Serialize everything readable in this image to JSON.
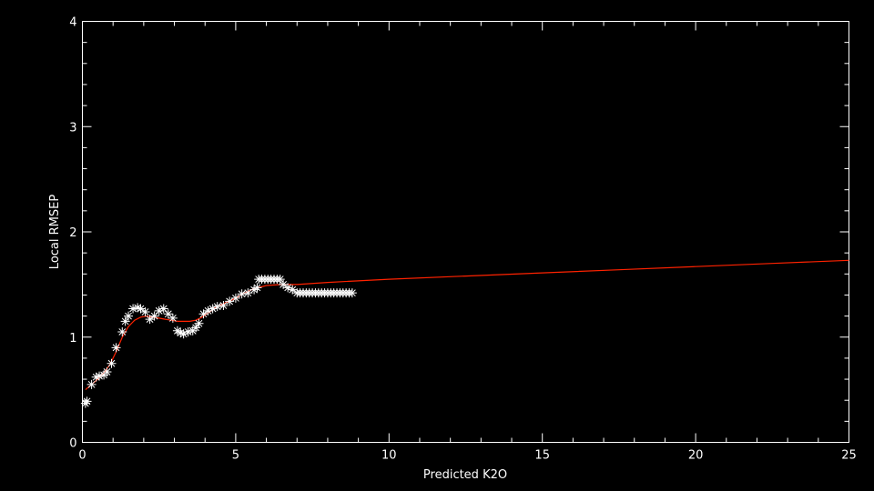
{
  "chart_data": {
    "type": "scatter",
    "title": "",
    "xlabel": "Predicted K2O",
    "ylabel": "Local RMSEP",
    "xlim": [
      0,
      25
    ],
    "ylim": [
      0,
      4
    ],
    "x_ticks": [
      "0",
      "5",
      "10",
      "15",
      "20",
      "25"
    ],
    "y_ticks": [
      "0",
      "1",
      "2",
      "3",
      "4"
    ],
    "grid": false,
    "colors": {
      "background": "#000000",
      "axes": "#ffffff",
      "points": "#ffffff",
      "fit": "#ff2200"
    },
    "series": [
      {
        "marker": "asterisk",
        "x": [
          0.1,
          0.15,
          0.3,
          0.45,
          0.55,
          0.7,
          0.8,
          0.95,
          1.1,
          1.3,
          1.4,
          1.5,
          1.65,
          1.8,
          1.9,
          2.05,
          2.2,
          2.35,
          2.5,
          2.65,
          2.8,
          2.95,
          3.1,
          3.2,
          3.3,
          3.45,
          3.6,
          3.7,
          3.8,
          3.95,
          4.1,
          4.25,
          4.4,
          4.6,
          4.8,
          5.0,
          5.2,
          5.4,
          5.6,
          5.7,
          5.75,
          5.85,
          5.95,
          6.05,
          6.15,
          6.25,
          6.35,
          6.45,
          6.55,
          6.7,
          6.85,
          7.0,
          7.1,
          7.2,
          7.3,
          7.4,
          7.5,
          7.6,
          7.7,
          7.8,
          7.9,
          8.0,
          8.1,
          8.2,
          8.3,
          8.4,
          8.5,
          8.6,
          8.7,
          8.8
        ],
        "y": [
          0.37,
          0.39,
          0.55,
          0.62,
          0.63,
          0.64,
          0.67,
          0.75,
          0.9,
          1.05,
          1.15,
          1.2,
          1.27,
          1.28,
          1.27,
          1.24,
          1.17,
          1.2,
          1.25,
          1.27,
          1.22,
          1.18,
          1.06,
          1.04,
          1.03,
          1.05,
          1.06,
          1.09,
          1.13,
          1.22,
          1.25,
          1.27,
          1.29,
          1.3,
          1.34,
          1.37,
          1.41,
          1.42,
          1.45,
          1.47,
          1.55,
          1.55,
          1.55,
          1.55,
          1.55,
          1.55,
          1.55,
          1.55,
          1.5,
          1.47,
          1.45,
          1.42,
          1.42,
          1.42,
          1.42,
          1.42,
          1.42,
          1.42,
          1.42,
          1.42,
          1.42,
          1.42,
          1.42,
          1.42,
          1.42,
          1.42,
          1.42,
          1.42,
          1.42,
          1.42
        ]
      },
      {
        "marker": "line",
        "x": [
          0.1,
          0.3,
          0.5,
          0.7,
          0.9,
          1.1,
          1.3,
          1.5,
          1.7,
          1.9,
          2.1,
          2.3,
          2.5,
          2.7,
          2.9,
          3.1,
          3.3,
          3.5,
          3.7,
          3.9,
          4.1,
          4.4,
          4.7,
          5.0,
          5.3,
          5.6,
          6.0,
          6.5,
          7.0,
          8.0,
          10.0,
          12.5,
          15.0,
          17.5,
          20.0,
          22.5,
          25.0
        ],
        "y": [
          0.5,
          0.55,
          0.6,
          0.66,
          0.74,
          0.86,
          1.0,
          1.1,
          1.16,
          1.19,
          1.2,
          1.19,
          1.18,
          1.17,
          1.16,
          1.15,
          1.15,
          1.15,
          1.16,
          1.19,
          1.23,
          1.29,
          1.33,
          1.37,
          1.42,
          1.46,
          1.49,
          1.5,
          1.5,
          1.52,
          1.55,
          1.58,
          1.61,
          1.64,
          1.67,
          1.7,
          1.73
        ]
      }
    ]
  }
}
